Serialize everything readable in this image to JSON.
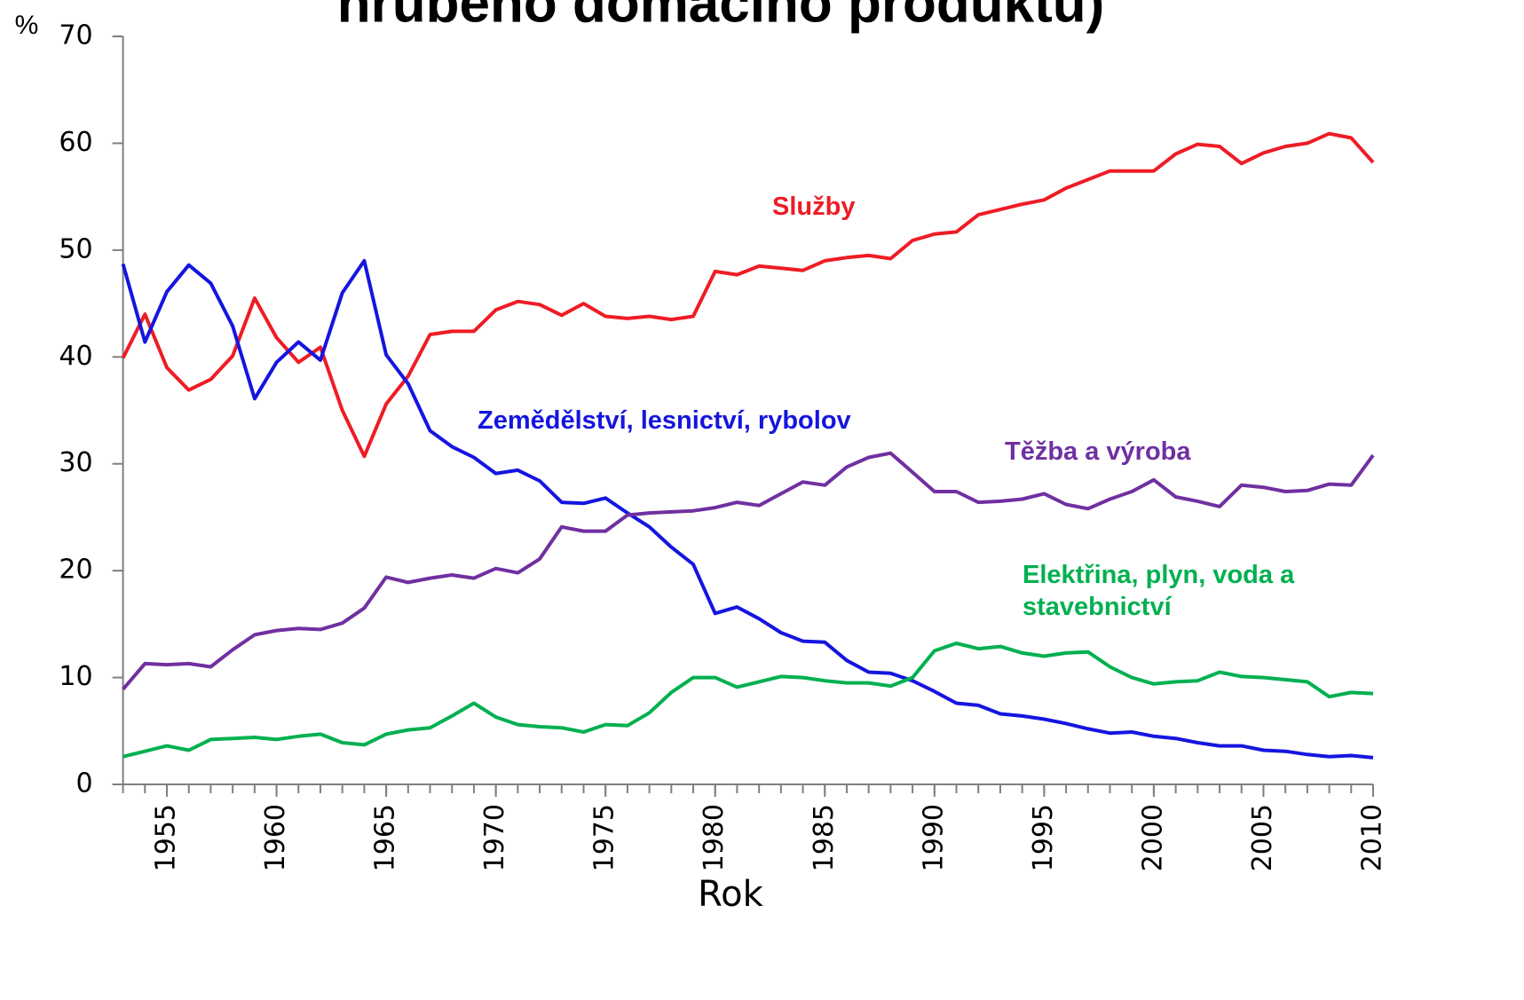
{
  "chart_data": {
    "type": "line",
    "title": "hrubého domácího produktu)",
    "y_label": "%",
    "x_label": "Rok",
    "xlim": [
      1953,
      2010
    ],
    "xticks": [
      1955,
      1960,
      1965,
      1970,
      1975,
      1980,
      1985,
      1990,
      1995,
      2000,
      2005,
      2010
    ],
    "ylim": [
      0,
      70
    ],
    "yticks": [
      0,
      10,
      20,
      30,
      40,
      50,
      60,
      70
    ],
    "grid": false,
    "x": [
      1953,
      1954,
      1955,
      1956,
      1957,
      1958,
      1959,
      1960,
      1961,
      1962,
      1963,
      1964,
      1965,
      1966,
      1967,
      1968,
      1969,
      1970,
      1971,
      1972,
      1973,
      1974,
      1975,
      1976,
      1977,
      1978,
      1979,
      1980,
      1981,
      1982,
      1983,
      1984,
      1985,
      1986,
      1987,
      1988,
      1989,
      1990,
      1991,
      1992,
      1993,
      1994,
      1995,
      1996,
      1997,
      1998,
      1999,
      2000,
      2001,
      2002,
      2003,
      2004,
      2005,
      2006,
      2007,
      2008,
      2009,
      2010
    ],
    "series": [
      {
        "name": "Služby",
        "color": "#ee1c25",
        "values": [
          39.9,
          44.0,
          39.0,
          36.9,
          37.9,
          40.1,
          45.5,
          41.8,
          39.5,
          40.9,
          35.0,
          30.7,
          35.6,
          38.2,
          42.1,
          42.4,
          42.4,
          44.4,
          45.2,
          44.9,
          43.9,
          45.0,
          43.8,
          43.6,
          43.8,
          43.5,
          43.8,
          48.0,
          47.7,
          48.5,
          48.3,
          48.1,
          49.0,
          49.3,
          49.5,
          49.2,
          50.9,
          51.5,
          51.7,
          53.3,
          53.8,
          54.3,
          54.7,
          55.8,
          56.6,
          57.4,
          57.4,
          57.4,
          59.0,
          59.9,
          59.7,
          58.1,
          59.1,
          59.7,
          60.0,
          60.9,
          60.5,
          58.2
        ]
      },
      {
        "name": "Zemědělství, lesnictví, rybolov",
        "color": "#1515e0",
        "values": [
          48.7,
          41.4,
          46.1,
          48.6,
          46.9,
          42.9,
          36.1,
          39.5,
          41.4,
          39.7,
          46.0,
          49.0,
          40.2,
          37.5,
          33.1,
          31.6,
          30.6,
          29.1,
          29.4,
          28.4,
          26.4,
          26.3,
          26.8,
          25.4,
          24.1,
          22.2,
          20.6,
          16.0,
          16.6,
          15.5,
          14.2,
          13.4,
          13.3,
          11.6,
          10.5,
          10.4,
          9.7,
          8.7,
          7.6,
          7.4,
          6.6,
          6.4,
          6.1,
          5.7,
          5.2,
          4.8,
          4.9,
          4.5,
          4.3,
          3.9,
          3.6,
          3.6,
          3.2,
          3.1,
          2.8,
          2.6,
          2.7,
          2.5
        ]
      },
      {
        "name": "Těžba a výroba",
        "color": "#7030a0",
        "values": [
          8.9,
          11.3,
          11.2,
          11.3,
          11.0,
          12.6,
          14.0,
          14.4,
          14.6,
          14.5,
          15.1,
          16.5,
          19.4,
          18.9,
          19.3,
          19.6,
          19.3,
          20.2,
          19.8,
          21.1,
          24.1,
          23.7,
          23.7,
          25.2,
          25.4,
          25.5,
          25.6,
          25.9,
          26.4,
          26.1,
          27.2,
          28.3,
          28.0,
          29.7,
          30.6,
          31.0,
          29.2,
          27.4,
          27.4,
          26.4,
          26.5,
          26.7,
          27.2,
          26.2,
          25.8,
          26.7,
          27.4,
          28.5,
          26.9,
          26.5,
          26.0,
          28.0,
          27.8,
          27.4,
          27.5,
          28.1,
          28.0,
          30.8
        ]
      },
      {
        "name": "Elektřina, plyn, voda a stavebnictví",
        "color": "#00b050",
        "values": [
          2.6,
          3.1,
          3.6,
          3.2,
          4.2,
          4.3,
          4.4,
          4.2,
          4.5,
          4.7,
          3.9,
          3.7,
          4.7,
          5.1,
          5.3,
          6.4,
          7.6,
          6.3,
          5.6,
          5.4,
          5.3,
          4.9,
          5.6,
          5.5,
          6.7,
          8.6,
          10.0,
          10.0,
          9.1,
          9.6,
          10.1,
          10.0,
          9.7,
          9.5,
          9.5,
          9.2,
          10.0,
          12.5,
          13.2,
          12.7,
          12.9,
          12.3,
          12.0,
          12.3,
          12.4,
          11.0,
          10.0,
          9.4,
          9.6,
          9.7,
          10.5,
          10.1,
          10.0,
          9.8,
          9.6,
          8.2,
          8.6,
          8.5
        ]
      }
    ]
  }
}
